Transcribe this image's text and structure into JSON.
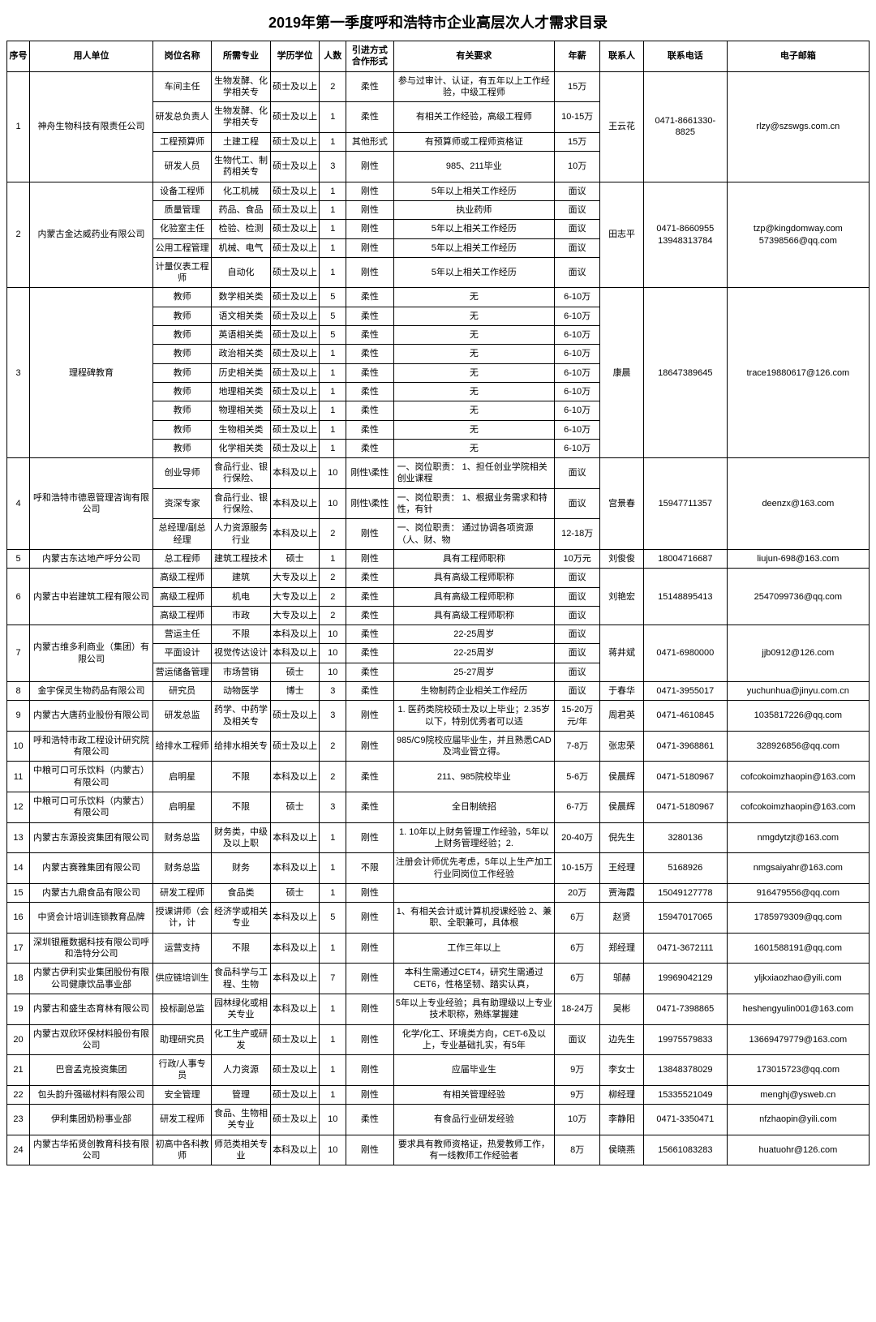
{
  "title": "2019年第一季度呼和浩特市企业高层次人才需求目录",
  "headers": {
    "seq": "序号",
    "employer": "用人单位",
    "position": "岗位名称",
    "major": "所需专业",
    "education": "学历学位",
    "count": "人数",
    "form": "引进方式\n合作形式",
    "requirements": "有关要求",
    "salary": "年薪",
    "contact": "联系人",
    "phone": "联系电话",
    "email": "电子邮箱"
  },
  "groups": [
    {
      "seq": "1",
      "employer": "神舟生物科技有限责任公司",
      "contact": "王云花",
      "phone": "0471-8661330-8825",
      "email": "rlzy@szswgs.com.cn",
      "rows": [
        {
          "position": "车间主任",
          "major": "生物发酵、化学相关专",
          "education": "硕士及以上",
          "count": "2",
          "form": "柔性",
          "req": "参与过审计、认证，有五年以上工作经验，中级工程师",
          "salary": "15万"
        },
        {
          "position": "研发总负责人",
          "major": "生物发酵、化学相关专",
          "education": "硕士及以上",
          "count": "1",
          "form": "柔性",
          "req": "有相关工作经验，高级工程师",
          "salary": "10-15万"
        },
        {
          "position": "工程预算师",
          "major": "土建工程",
          "education": "硕士及以上",
          "count": "1",
          "form": "其他形式",
          "req": "有预算师或工程师资格证",
          "salary": "15万"
        },
        {
          "position": "研发人员",
          "major": "生物代工、制药相关专",
          "education": "硕士及以上",
          "count": "3",
          "form": "刚性",
          "req": "985、211毕业",
          "salary": "10万"
        }
      ]
    },
    {
      "seq": "2",
      "employer": "内蒙古金达威药业有限公司",
      "contact": "田志平",
      "phone": "0471-8660955 13948313784",
      "email": "tzp@kingdomway.com 57398566@qq.com",
      "rows": [
        {
          "position": "设备工程师",
          "major": "化工机械",
          "education": "硕士及以上",
          "count": "1",
          "form": "刚性",
          "req": "5年以上相关工作经历",
          "salary": "面议"
        },
        {
          "position": "质量管理",
          "major": "药品、食品",
          "education": "硕士及以上",
          "count": "1",
          "form": "刚性",
          "req": "执业药师",
          "salary": "面议"
        },
        {
          "position": "化验室主任",
          "major": "检验、检测",
          "education": "硕士及以上",
          "count": "1",
          "form": "刚性",
          "req": "5年以上相关工作经历",
          "salary": "面议"
        },
        {
          "position": "公用工程管理",
          "major": "机械、电气",
          "education": "硕士及以上",
          "count": "1",
          "form": "刚性",
          "req": "5年以上相关工作经历",
          "salary": "面议"
        },
        {
          "position": "计量仪表工程师",
          "major": "自动化",
          "education": "硕士及以上",
          "count": "1",
          "form": "刚性",
          "req": "5年以上相关工作经历",
          "salary": "面议"
        }
      ]
    },
    {
      "seq": "3",
      "employer": "理程碑教育",
      "contact": "康晨",
      "phone": "18647389645",
      "email": "trace19880617@126.com",
      "rows": [
        {
          "position": "教师",
          "major": "数学相关类",
          "education": "硕士及以上",
          "count": "5",
          "form": "柔性",
          "req": "无",
          "salary": "6-10万"
        },
        {
          "position": "教师",
          "major": "语文相关类",
          "education": "硕士及以上",
          "count": "5",
          "form": "柔性",
          "req": "无",
          "salary": "6-10万"
        },
        {
          "position": "教师",
          "major": "英语相关类",
          "education": "硕士及以上",
          "count": "5",
          "form": "柔性",
          "req": "无",
          "salary": "6-10万"
        },
        {
          "position": "教师",
          "major": "政治相关类",
          "education": "硕士及以上",
          "count": "1",
          "form": "柔性",
          "req": "无",
          "salary": "6-10万"
        },
        {
          "position": "教师",
          "major": "历史相关类",
          "education": "硕士及以上",
          "count": "1",
          "form": "柔性",
          "req": "无",
          "salary": "6-10万"
        },
        {
          "position": "教师",
          "major": "地理相关类",
          "education": "硕士及以上",
          "count": "1",
          "form": "柔性",
          "req": "无",
          "salary": "6-10万"
        },
        {
          "position": "教师",
          "major": "物理相关类",
          "education": "硕士及以上",
          "count": "1",
          "form": "柔性",
          "req": "无",
          "salary": "6-10万"
        },
        {
          "position": "教师",
          "major": "生物相关类",
          "education": "硕士及以上",
          "count": "1",
          "form": "柔性",
          "req": "无",
          "salary": "6-10万"
        },
        {
          "position": "教师",
          "major": "化学相关类",
          "education": "硕士及以上",
          "count": "1",
          "form": "柔性",
          "req": "无",
          "salary": "6-10万"
        }
      ]
    },
    {
      "seq": "4",
      "employer": "呼和浩特市德恩管理咨询有限公司",
      "contact": "宫景春",
      "phone": "15947711357",
      "email": "deenzx@163.com",
      "rows": [
        {
          "position": "创业导师",
          "major": "食品行业、银行保险、",
          "education": "本科及以上",
          "count": "10",
          "form": "刚性\\柔性",
          "req": "一、岗位职责：\n1、担任创业学院相关创业课程",
          "salary": "面议",
          "reqAlign": "left"
        },
        {
          "position": "资深专家",
          "major": "食品行业、银行保险、",
          "education": "本科及以上",
          "count": "10",
          "form": "刚性\\柔性",
          "req": "一、岗位职责：\n1、根据业务需求和特性，有针",
          "salary": "面议",
          "reqAlign": "left"
        },
        {
          "position": "总经理/副总经理",
          "major": "人力资源服务行业",
          "education": "本科及以上",
          "count": "2",
          "form": "刚性",
          "req": "一、岗位职责：\n通过协调各项资源（人、财、物",
          "salary": "12-18万",
          "reqAlign": "left"
        }
      ]
    },
    {
      "seq": "5",
      "employer": "内蒙古东达地产呼分公司",
      "contact": "刘俊俊",
      "phone": "18004716687",
      "email": "liujun-698@163.com",
      "rows": [
        {
          "position": "总工程师",
          "major": "建筑工程技术",
          "education": "硕士",
          "count": "1",
          "form": "刚性",
          "req": "具有工程师职称",
          "salary": "10万元"
        }
      ]
    },
    {
      "seq": "6",
      "employer": "内蒙古中岩建筑工程有限公司",
      "contact": "刘艳宏",
      "phone": "15148895413",
      "email": "2547099736@qq.com",
      "rows": [
        {
          "position": "高级工程师",
          "major": "建筑",
          "education": "大专及以上",
          "count": "2",
          "form": "柔性",
          "req": "具有高级工程师职称",
          "salary": "面议"
        },
        {
          "position": "高级工程师",
          "major": "机电",
          "education": "大专及以上",
          "count": "2",
          "form": "柔性",
          "req": "具有高级工程师职称",
          "salary": "面议"
        },
        {
          "position": "高级工程师",
          "major": "市政",
          "education": "大专及以上",
          "count": "2",
          "form": "柔性",
          "req": "具有高级工程师职称",
          "salary": "面议"
        }
      ]
    },
    {
      "seq": "7",
      "employer": "内蒙古维多利商业（集团）有限公司",
      "contact": "蒋井斌",
      "phone": "0471-6980000",
      "email": "jjb0912@126.com",
      "rows": [
        {
          "position": "营运主任",
          "major": "不限",
          "education": "本科及以上",
          "count": "10",
          "form": "柔性",
          "req": "22-25周岁",
          "salary": "面议"
        },
        {
          "position": "平面设计",
          "major": "视觉传达设计",
          "education": "本科及以上",
          "count": "10",
          "form": "柔性",
          "req": "22-25周岁",
          "salary": "面议"
        },
        {
          "position": "营运储备管理",
          "major": "市场营销",
          "education": "硕士",
          "count": "10",
          "form": "柔性",
          "req": "25-27周岁",
          "salary": "面议"
        }
      ]
    },
    {
      "seq": "8",
      "employer": "金宇保灵生物药品有限公司",
      "contact": "于春华",
      "phone": "0471-3955017",
      "email": "yuchunhua@jinyu.com.cn",
      "rows": [
        {
          "position": "研究员",
          "major": "动物医学",
          "education": "博士",
          "count": "3",
          "form": "柔性",
          "req": "生物制药企业相关工作经历",
          "salary": "面议"
        }
      ]
    },
    {
      "seq": "9",
      "employer": "内蒙古大唐药业股份有限公司",
      "contact": "周君英",
      "phone": "0471-4610845",
      "email": "1035817226@qq.com",
      "rows": [
        {
          "position": "研发总监",
          "major": "药学、中药学及相关专",
          "education": "硕士及以上",
          "count": "3",
          "form": "刚性",
          "req": "1. 医药类院校硕士及以上毕业；2.35岁以下，特别优秀者可以适",
          "salary": "15-20万元/年"
        }
      ]
    },
    {
      "seq": "10",
      "employer": "呼和浩特市政工程设计研究院有限公司",
      "contact": "张忠荣",
      "phone": "0471-3968861",
      "email": "328926856@qq.com",
      "rows": [
        {
          "position": "给排水工程师",
          "major": "给排水相关专",
          "education": "硕士及以上",
          "count": "2",
          "form": "刚性",
          "req": "985/C9院校应届毕业生，并且熟悉CAD及鸿业管立得。",
          "salary": "7-8万"
        }
      ]
    },
    {
      "seq": "11",
      "employer": "中粮可口可乐饮料（内蒙古）有限公司",
      "contact": "侯晨辉",
      "phone": "0471-5180967",
      "email": "cofcokoimzhaopin@163.com",
      "rows": [
        {
          "position": "启明星",
          "major": "不限",
          "education": "本科及以上",
          "count": "2",
          "form": "柔性",
          "req": "211、985院校毕业",
          "salary": "5-6万"
        }
      ]
    },
    {
      "seq": "12",
      "employer": "中粮可口可乐饮料（内蒙古）有限公司",
      "contact": "侯晨辉",
      "phone": "0471-5180967",
      "email": "cofcokoimzhaopin@163.com",
      "rows": [
        {
          "position": "启明星",
          "major": "不限",
          "education": "硕士",
          "count": "3",
          "form": "柔性",
          "req": "全日制统招",
          "salary": "6-7万"
        }
      ]
    },
    {
      "seq": "13",
      "employer": "内蒙古东源投资集团有限公司",
      "contact": "倪先生",
      "phone": "3280136",
      "email": "nmgdytzjt@163.com",
      "rows": [
        {
          "position": "财务总监",
          "major": "财务类，中级及以上职",
          "education": "本科及以上",
          "count": "1",
          "form": "刚性",
          "req": "1. 10年以上财务管理工作经验，5年以上财务管理经验；2.",
          "salary": "20-40万"
        }
      ]
    },
    {
      "seq": "14",
      "employer": "内蒙古赛雅集团有限公司",
      "contact": "王经理",
      "phone": "5168926",
      "email": "nmgsaiyahr@163.com",
      "rows": [
        {
          "position": "财务总监",
          "major": "财务",
          "education": "本科及以上",
          "count": "1",
          "form": "不限",
          "req": "注册会计师优先考虑，5年以上生产加工行业同岗位工作经验",
          "salary": "10-15万"
        }
      ]
    },
    {
      "seq": "15",
      "employer": "内蒙古九鼎食品有限公司",
      "contact": "贾海霞",
      "phone": "15049127778",
      "email": "916479556@qq.com",
      "rows": [
        {
          "position": "研发工程师",
          "major": "食品类",
          "education": "硕士",
          "count": "1",
          "form": "刚性",
          "req": "",
          "salary": "20万"
        }
      ]
    },
    {
      "seq": "16",
      "employer": "中贤会计培训连锁教育品牌",
      "contact": "赵贤",
      "phone": "15947017065",
      "email": "1785979309@qq.com",
      "rows": [
        {
          "position": "授课讲师（会计，计",
          "major": "经济学或相关专业",
          "education": "本科及以上",
          "count": "5",
          "form": "刚性",
          "req": "1、有相关会计或计算机授课经验 2、兼职、全职兼可，具体根",
          "salary": "6万"
        }
      ]
    },
    {
      "seq": "17",
      "employer": "深圳银雁数据科技有限公司呼和浩特分公司",
      "contact": "郑经理",
      "phone": "0471-3672111",
      "email": "1601588191@qq.com",
      "rows": [
        {
          "position": "运营支持",
          "major": "不限",
          "education": "本科及以上",
          "count": "1",
          "form": "刚性",
          "req": "工作三年以上",
          "salary": "6万"
        }
      ]
    },
    {
      "seq": "18",
      "employer": "内蒙古伊利实业集团股份有限公司健康饮品事业部",
      "contact": "邬赫",
      "phone": "19969042129",
      "email": "yljkxiaozhao@yili.com",
      "rows": [
        {
          "position": "供应链培训生",
          "major": "食品科学与工程、生物",
          "education": "本科及以上",
          "count": "7",
          "form": "刚性",
          "req": "本科生需通过CET4，研究生需通过CET6，性格坚韧、踏实认真，",
          "salary": "6万"
        }
      ]
    },
    {
      "seq": "19",
      "employer": "内蒙古和盛生态育林有限公司",
      "contact": "吴彬",
      "phone": "0471-7398865",
      "email": "heshengyulin001@163.com",
      "rows": [
        {
          "position": "投标副总监",
          "major": "园林绿化或相关专业",
          "education": "本科及以上",
          "count": "1",
          "form": "刚性",
          "req": "5年以上专业经验；具有助理级以上专业技术职称，熟练掌握建",
          "salary": "18-24万"
        }
      ]
    },
    {
      "seq": "20",
      "employer": "内蒙古双欣环保材料股份有限公司",
      "contact": "边先生",
      "phone": "19975579833",
      "email": "13669479779@163.com",
      "rows": [
        {
          "position": "助理研究员",
          "major": "化工生产或研发",
          "education": "硕士及以上",
          "count": "1",
          "form": "刚性",
          "req": "化学/化工、环境类方向，CET-6及以上，专业基础扎实，有5年",
          "salary": "面议"
        }
      ]
    },
    {
      "seq": "21",
      "employer": "巴音孟克投资集团",
      "contact": "李女士",
      "phone": "13848378029",
      "email": "173015723@qq.com",
      "rows": [
        {
          "position": "行政/人事专员",
          "major": "人力资源",
          "education": "硕士及以上",
          "count": "1",
          "form": "刚性",
          "req": "应届毕业生",
          "salary": "9万"
        }
      ]
    },
    {
      "seq": "22",
      "employer": "包头韵升强磁材料有限公司",
      "contact": "柳经理",
      "phone": "15335521049",
      "email": "menghj@ysweb.cn",
      "rows": [
        {
          "position": "安全管理",
          "major": "管理",
          "education": "硕士及以上",
          "count": "1",
          "form": "刚性",
          "req": "有相关管理经验",
          "salary": "9万"
        }
      ]
    },
    {
      "seq": "23",
      "employer": "伊利集团奶粉事业部",
      "contact": "李静阳",
      "phone": "0471-3350471",
      "email": "nfzhaopin@yili.com",
      "rows": [
        {
          "position": "研发工程师",
          "major": "食品、生物相关专业",
          "education": "硕士及以上",
          "count": "10",
          "form": "柔性",
          "req": "有食品行业研发经验",
          "salary": "10万"
        }
      ]
    },
    {
      "seq": "24",
      "employer": "内蒙古华拓贤创教育科技有限公司",
      "contact": "侯晓燕",
      "phone": "15661083283",
      "email": "huatuohr@126.com",
      "rows": [
        {
          "position": "初高中各科教师",
          "major": "师范类相关专业",
          "education": "本科及以上",
          "count": "10",
          "form": "刚性",
          "req": "要求具有教师资格证，热爱教师工作，有一线教师工作经验者",
          "salary": "8万"
        }
      ]
    }
  ]
}
